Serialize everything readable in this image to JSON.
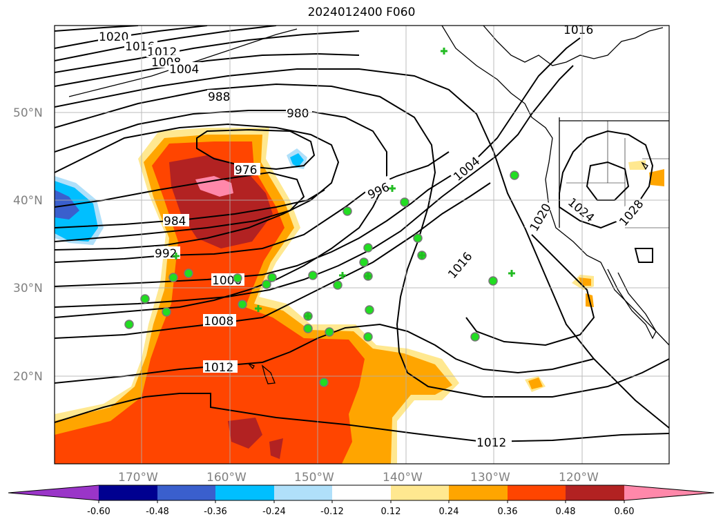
{
  "title": "2024012400 F060",
  "map": {
    "lat_labels": [
      "50°N",
      "40°N",
      "30°N",
      "20°N"
    ],
    "lon_labels": [
      "170°W",
      "160°W",
      "150°W",
      "140°W",
      "130°W",
      "120°W"
    ],
    "contour_labels": [
      "1020",
      "1016",
      "1012",
      "1008",
      "1004",
      "988",
      "980",
      "976",
      "984",
      "992",
      "1000",
      "1008",
      "1012",
      "996",
      "1004",
      "1016",
      "1020",
      "1024",
      "1028",
      "1016",
      "1012"
    ]
  },
  "colorbar": {
    "ticks": [
      "-0.60",
      "-0.48",
      "-0.36",
      "-0.24",
      "-0.12",
      "0.12",
      "0.24",
      "0.36",
      "0.48",
      "0.60"
    ],
    "colors": [
      "#9a35c8",
      "#000090",
      "#3a5fcd",
      "#00bfff",
      "#b0e0fa",
      "#ffffff",
      "#ffe890",
      "#ffa500",
      "#ff4500",
      "#b22222",
      "#ff88aa"
    ]
  },
  "colors": {
    "land_outline": "#000000",
    "station_marker": "#22dd22",
    "grid": "#b0b0b0"
  }
}
